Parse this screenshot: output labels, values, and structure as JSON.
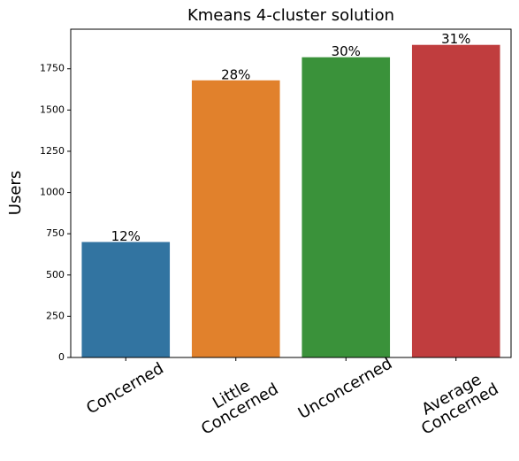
{
  "chart_data": {
    "type": "bar",
    "title": "Kmeans 4-cluster solution",
    "ylabel": "Users",
    "categories": [
      "Concerned",
      "Little\nConcerned",
      "Unconcerned",
      "Average\nConcerned"
    ],
    "values": [
      700,
      1680,
      1820,
      1895
    ],
    "annotations": [
      "12%",
      "28%",
      "30%",
      "31%"
    ],
    "colors": [
      "#3274a1",
      "#e1812c",
      "#3a923a",
      "#c03d3e"
    ],
    "ylim": [
      0,
      1990
    ],
    "yticks": [
      0,
      250,
      500,
      750,
      1000,
      1250,
      1500,
      1750
    ]
  }
}
